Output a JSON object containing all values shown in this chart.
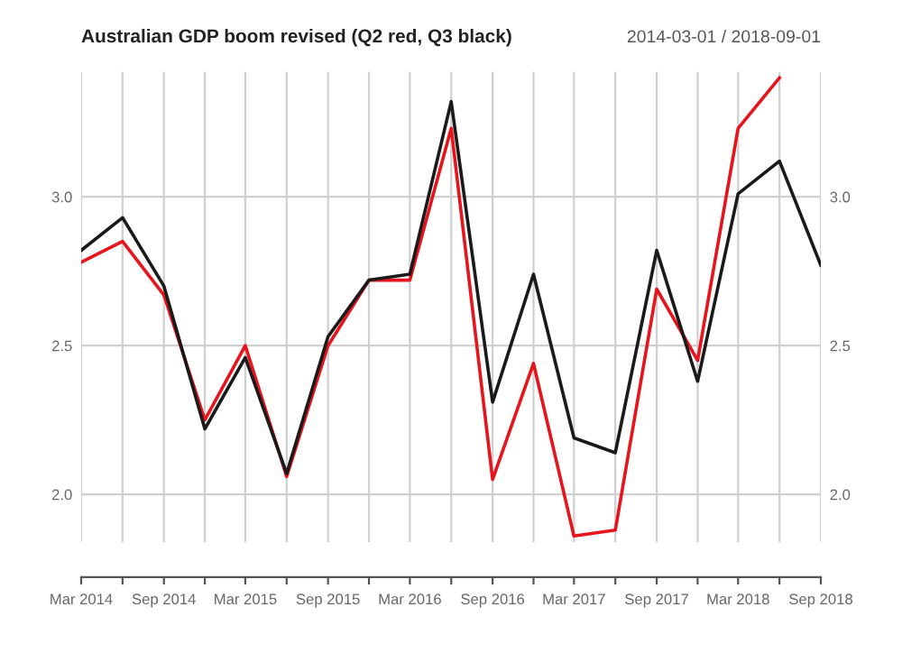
{
  "chart_data": {
    "type": "line",
    "title": "Australian GDP boom revised (Q2 red, Q3 black)",
    "subtitle": "2014-03-01 / 2018-09-01",
    "x": [
      "2014-03",
      "2014-06",
      "2014-09",
      "2014-12",
      "2015-03",
      "2015-06",
      "2015-09",
      "2015-12",
      "2016-03",
      "2016-06",
      "2016-09",
      "2016-12",
      "2017-03",
      "2017-06",
      "2017-09",
      "2017-12",
      "2018-03",
      "2018-06",
      "2018-09"
    ],
    "series": [
      {
        "color": "#e8141b",
        "values": [
          2.78,
          2.85,
          2.67,
          2.25,
          2.5,
          2.06,
          2.5,
          2.72,
          2.72,
          3.23,
          2.05,
          2.44,
          1.86,
          1.88,
          2.69,
          2.45,
          3.23,
          3.4,
          null
        ]
      },
      {
        "color": "#1a1a1a",
        "values": [
          2.82,
          2.93,
          2.7,
          2.22,
          2.46,
          2.07,
          2.53,
          2.72,
          2.74,
          3.32,
          2.31,
          2.74,
          2.19,
          2.14,
          2.82,
          2.38,
          3.01,
          3.12,
          2.77
        ]
      }
    ],
    "ylim": [
      1.84,
      3.42
    ],
    "yticks": [
      {
        "value": 2,
        "label": "2.0"
      },
      2.5,
      {
        "value": 3,
        "label": "3.0"
      }
    ],
    "y2lim": [
      1.84,
      3.42
    ],
    "y2ticks": [
      {
        "value": 2,
        "label": "2.0"
      },
      2.5,
      {
        "value": 3,
        "label": "3.0"
      }
    ],
    "xlim": [
      "2014-03",
      "2018-09"
    ],
    "xticks": [
      {
        "value": "2014-03",
        "label": "Mar 2014"
      },
      {
        "value": "2014-06",
        "label": null
      },
      {
        "value": "2014-09",
        "label": "Sep 2014"
      },
      {
        "value": "2014-12",
        "label": null
      },
      {
        "value": "2015-03",
        "label": "Mar 2015"
      },
      {
        "value": "2015-06",
        "label": null
      },
      {
        "value": "2015-09",
        "label": "Sep 2015"
      },
      {
        "value": "2015-12",
        "label": null
      },
      {
        "value": "2016-03",
        "label": "Mar 2016"
      },
      {
        "value": "2016-06",
        "label": null
      },
      {
        "value": "2016-09",
        "label": "Sep 2016"
      },
      {
        "value": "2016-12",
        "label": null
      },
      {
        "value": "2017-03",
        "label": "Mar 2017"
      },
      {
        "value": "2017-06",
        "label": null
      },
      {
        "value": "2017-09",
        "label": "Sep 2017"
      },
      {
        "value": "2017-12",
        "label": null
      },
      {
        "value": "2018-03",
        "label": "Mar 2018"
      },
      {
        "value": "2018-06",
        "label": null
      },
      {
        "value": "2018-09",
        "label": "Sep 2018"
      }
    ],
    "grid": true,
    "line_style": "solid",
    "marker": "none"
  }
}
